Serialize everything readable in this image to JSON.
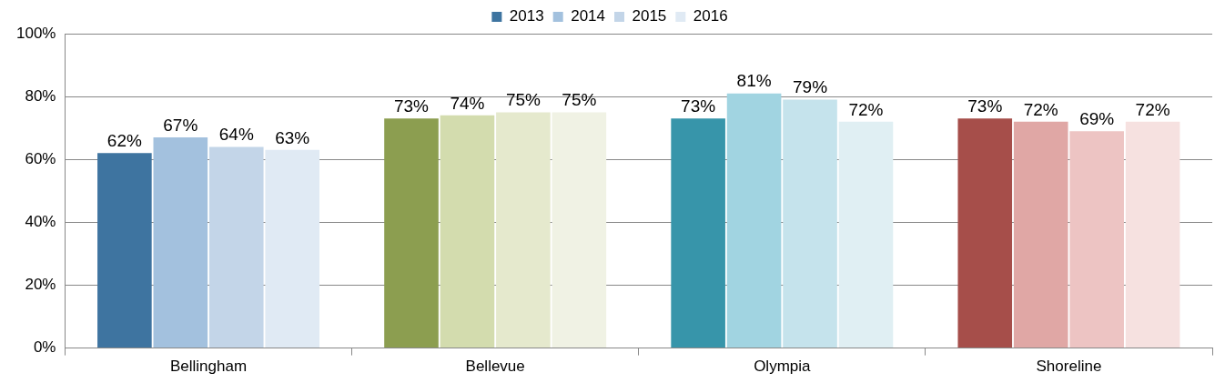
{
  "chart_data": {
    "type": "bar",
    "categories": [
      "Bellingham",
      "Bellevue",
      "Olympia",
      "Shoreline"
    ],
    "series": [
      {
        "name": "2013",
        "color": "#3e74a0",
        "colors": [
          "#3e74a0",
          "#8c9e50",
          "#3795aa",
          "#a64e4a"
        ],
        "values": [
          62,
          73,
          73,
          73
        ],
        "value_labels": [
          "62%",
          "73%",
          "73%",
          "73%"
        ]
      },
      {
        "name": "2014",
        "color": "#a3c1de",
        "colors": [
          "#a3c1de",
          "#d3dcae",
          "#a1d4e1",
          "#e0a7a5"
        ],
        "values": [
          67,
          74,
          81,
          72
        ],
        "value_labels": [
          "67%",
          "74%",
          "81%",
          "72%"
        ]
      },
      {
        "name": "2015",
        "color": "#c3d5e8",
        "colors": [
          "#c3d5e8",
          "#e5e9cd",
          "#c5e3ec",
          "#edc4c3"
        ],
        "values": [
          64,
          75,
          79,
          69
        ],
        "value_labels": [
          "64%",
          "75%",
          "79%",
          "69%"
        ]
      },
      {
        "name": "2016",
        "color": "#e0eaf4",
        "colors": [
          "#e0eaf4",
          "#f0f2e4",
          "#e0eff3",
          "#f6e1e0"
        ],
        "values": [
          63,
          75,
          72,
          72
        ],
        "value_labels": [
          "63%",
          "75%",
          "72%",
          "72%"
        ]
      }
    ],
    "ylim": [
      0,
      100
    ],
    "yticks": [
      {
        "value": 0,
        "label": "0%"
      },
      {
        "value": 20,
        "label": "20%"
      },
      {
        "value": 40,
        "label": "40%"
      },
      {
        "value": 60,
        "label": "60%"
      },
      {
        "value": 80,
        "label": "80%"
      },
      {
        "value": 100,
        "label": "100%"
      }
    ],
    "grid": "y",
    "legend": "top"
  }
}
